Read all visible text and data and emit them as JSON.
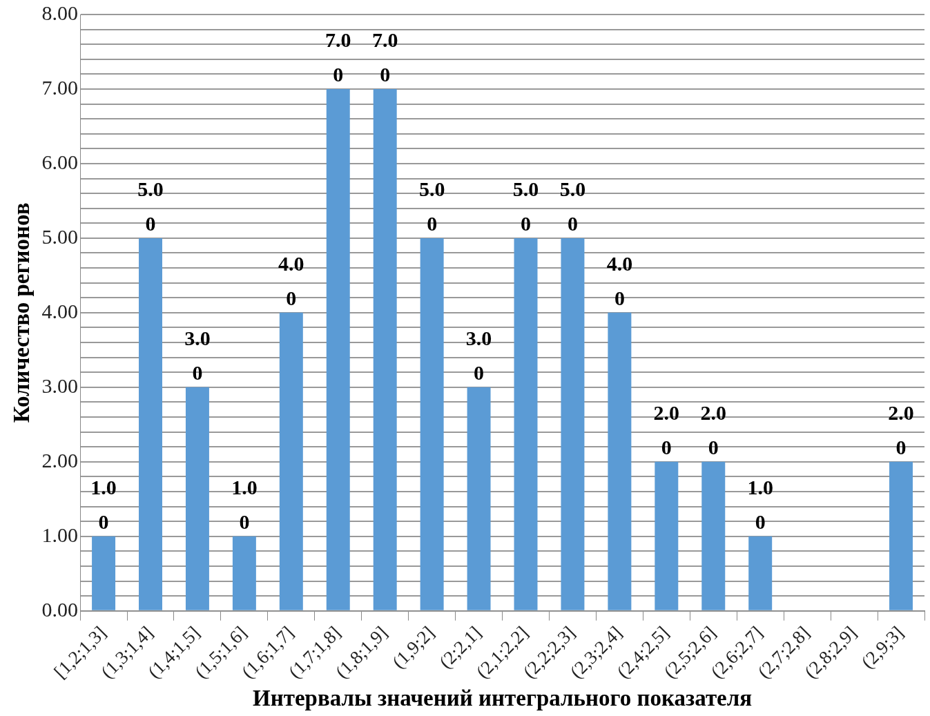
{
  "chart_data": {
    "type": "bar",
    "xlabel": "Интервалы значений интегрального показателя",
    "ylabel": "Количество регионов",
    "categories": [
      "[1,2;1,3]",
      "(1,3;1,4]",
      "(1,4;1,5]",
      "(1,5;1,6]",
      "(1,6;1,7]",
      "(1,7;1,8]",
      "(1,8;1,9]",
      "(1,9;2]",
      "(2;2,1]",
      "(2,1;2,2]",
      "(2,2;2,3]",
      "(2,3;2,4]",
      "(2,4;2,5]",
      "(2,5;2,6]",
      "(2,6;2,7]",
      "(2,7;2,8]",
      "(2,8;2,9]",
      "(2,9;3]"
    ],
    "values": [
      1,
      5,
      3,
      1,
      4,
      7,
      7,
      5,
      3,
      5,
      5,
      4,
      2,
      2,
      1,
      0,
      0,
      2
    ],
    "value_labels": [
      "1.00",
      "5.00",
      "3.00",
      "1.00",
      "4.00",
      "7.00",
      "7.00",
      "5.00",
      "3.00",
      "5.00",
      "5.00",
      "4.00",
      "2.00",
      "2.00",
      "1.00",
      null,
      null,
      "2.00"
    ],
    "color": "#5b9bd5",
    "ylim": [
      0,
      8
    ],
    "yticks": [
      {
        "value": 0,
        "label": "0.00"
      },
      {
        "value": 0.2,
        "label": null
      },
      {
        "value": 0.4,
        "label": null
      },
      {
        "value": 0.6,
        "label": null
      },
      {
        "value": 0.8,
        "label": null
      },
      {
        "value": 1,
        "label": "1.00"
      },
      {
        "value": 1.2,
        "label": null
      },
      {
        "value": 1.4,
        "label": null
      },
      {
        "value": 1.6,
        "label": null
      },
      {
        "value": 1.8,
        "label": null
      },
      {
        "value": 2,
        "label": "2.00"
      },
      {
        "value": 2.2,
        "label": null
      },
      {
        "value": 2.4,
        "label": null
      },
      {
        "value": 2.6,
        "label": null
      },
      {
        "value": 2.8,
        "label": null
      },
      {
        "value": 3,
        "label": "3.00"
      },
      {
        "value": 3.2,
        "label": null
      },
      {
        "value": 3.4,
        "label": null
      },
      {
        "value": 3.6,
        "label": null
      },
      {
        "value": 3.8,
        "label": null
      },
      {
        "value": 4,
        "label": "4.00"
      },
      {
        "value": 4.2,
        "label": null
      },
      {
        "value": 4.4,
        "label": null
      },
      {
        "value": 4.6,
        "label": null
      },
      {
        "value": 4.8,
        "label": null
      },
      {
        "value": 5,
        "label": "5.00"
      },
      {
        "value": 5.2,
        "label": null
      },
      {
        "value": 5.4,
        "label": null
      },
      {
        "value": 5.6,
        "label": null
      },
      {
        "value": 5.8,
        "label": null
      },
      {
        "value": 6,
        "label": "6.00"
      },
      {
        "value": 6.2,
        "label": null
      },
      {
        "value": 6.4,
        "label": null
      },
      {
        "value": 6.6,
        "label": null
      },
      {
        "value": 6.8,
        "label": null
      },
      {
        "value": 7,
        "label": "7.00"
      },
      {
        "value": 7.2,
        "label": null
      },
      {
        "value": 7.4,
        "label": null
      },
      {
        "value": 7.6,
        "label": null
      },
      {
        "value": 7.8,
        "label": null
      },
      {
        "value": 8,
        "label": "8.00"
      }
    ],
    "grid": "y",
    "legend": false
  }
}
